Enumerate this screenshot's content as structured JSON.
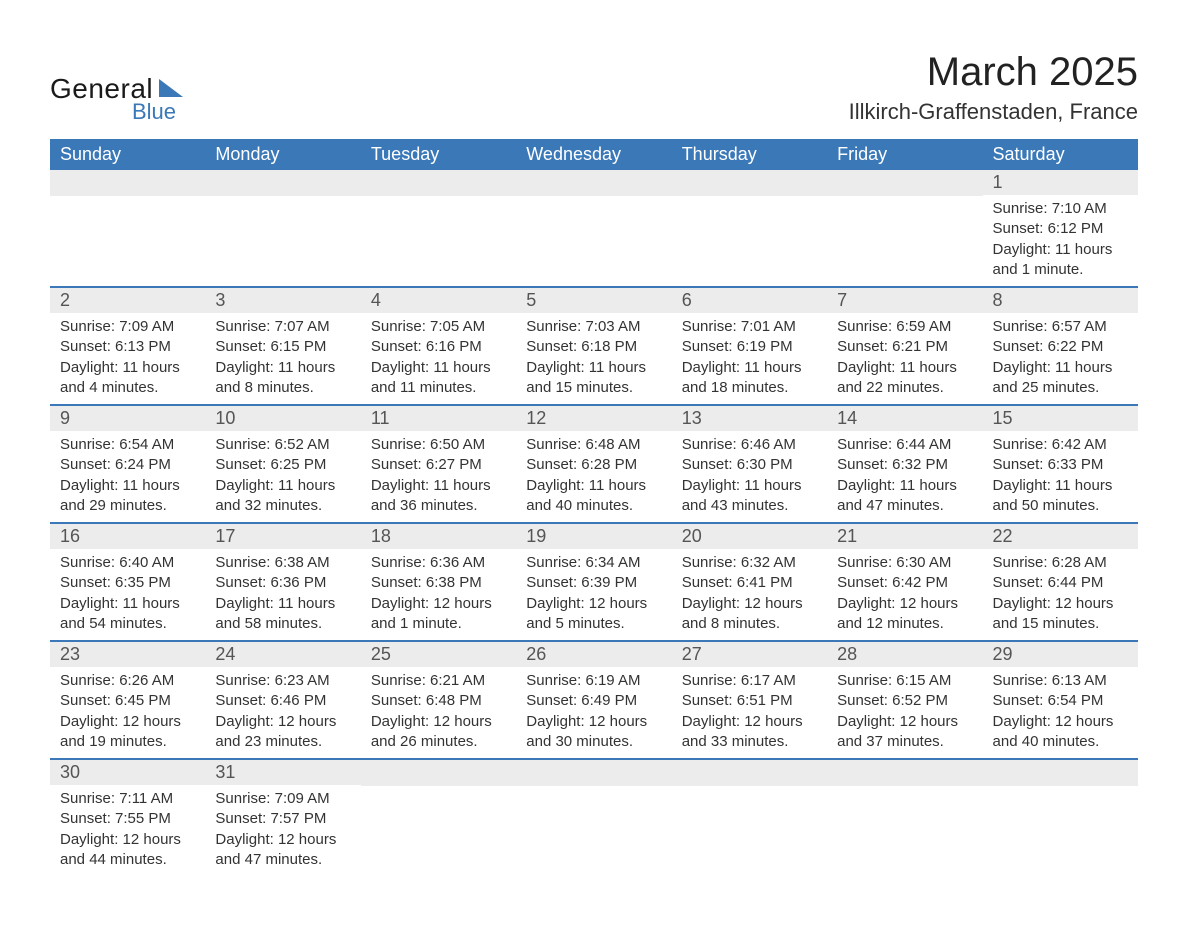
{
  "logo": {
    "text_general": "General",
    "text_blue": "Blue"
  },
  "header": {
    "month_year": "March 2025",
    "location": "Illkirch-Graffenstaden, France"
  },
  "colors": {
    "header_bg": "#3a78b8",
    "header_text": "#ffffff",
    "daynum_bg": "#ececec",
    "row_border": "#3a78b8",
    "body_text": "#333333",
    "logo_accent": "#3a78b8"
  },
  "calendar": {
    "type": "calendar-table",
    "day_names": [
      "Sunday",
      "Monday",
      "Tuesday",
      "Wednesday",
      "Thursday",
      "Friday",
      "Saturday"
    ],
    "weeks": [
      [
        null,
        null,
        null,
        null,
        null,
        null,
        {
          "n": "1",
          "sunrise": "7:10 AM",
          "sunset": "6:12 PM",
          "daylight": "11 hours and 1 minute."
        }
      ],
      [
        {
          "n": "2",
          "sunrise": "7:09 AM",
          "sunset": "6:13 PM",
          "daylight": "11 hours and 4 minutes."
        },
        {
          "n": "3",
          "sunrise": "7:07 AM",
          "sunset": "6:15 PM",
          "daylight": "11 hours and 8 minutes."
        },
        {
          "n": "4",
          "sunrise": "7:05 AM",
          "sunset": "6:16 PM",
          "daylight": "11 hours and 11 minutes."
        },
        {
          "n": "5",
          "sunrise": "7:03 AM",
          "sunset": "6:18 PM",
          "daylight": "11 hours and 15 minutes."
        },
        {
          "n": "6",
          "sunrise": "7:01 AM",
          "sunset": "6:19 PM",
          "daylight": "11 hours and 18 minutes."
        },
        {
          "n": "7",
          "sunrise": "6:59 AM",
          "sunset": "6:21 PM",
          "daylight": "11 hours and 22 minutes."
        },
        {
          "n": "8",
          "sunrise": "6:57 AM",
          "sunset": "6:22 PM",
          "daylight": "11 hours and 25 minutes."
        }
      ],
      [
        {
          "n": "9",
          "sunrise": "6:54 AM",
          "sunset": "6:24 PM",
          "daylight": "11 hours and 29 minutes."
        },
        {
          "n": "10",
          "sunrise": "6:52 AM",
          "sunset": "6:25 PM",
          "daylight": "11 hours and 32 minutes."
        },
        {
          "n": "11",
          "sunrise": "6:50 AM",
          "sunset": "6:27 PM",
          "daylight": "11 hours and 36 minutes."
        },
        {
          "n": "12",
          "sunrise": "6:48 AM",
          "sunset": "6:28 PM",
          "daylight": "11 hours and 40 minutes."
        },
        {
          "n": "13",
          "sunrise": "6:46 AM",
          "sunset": "6:30 PM",
          "daylight": "11 hours and 43 minutes."
        },
        {
          "n": "14",
          "sunrise": "6:44 AM",
          "sunset": "6:32 PM",
          "daylight": "11 hours and 47 minutes."
        },
        {
          "n": "15",
          "sunrise": "6:42 AM",
          "sunset": "6:33 PM",
          "daylight": "11 hours and 50 minutes."
        }
      ],
      [
        {
          "n": "16",
          "sunrise": "6:40 AM",
          "sunset": "6:35 PM",
          "daylight": "11 hours and 54 minutes."
        },
        {
          "n": "17",
          "sunrise": "6:38 AM",
          "sunset": "6:36 PM",
          "daylight": "11 hours and 58 minutes."
        },
        {
          "n": "18",
          "sunrise": "6:36 AM",
          "sunset": "6:38 PM",
          "daylight": "12 hours and 1 minute."
        },
        {
          "n": "19",
          "sunrise": "6:34 AM",
          "sunset": "6:39 PM",
          "daylight": "12 hours and 5 minutes."
        },
        {
          "n": "20",
          "sunrise": "6:32 AM",
          "sunset": "6:41 PM",
          "daylight": "12 hours and 8 minutes."
        },
        {
          "n": "21",
          "sunrise": "6:30 AM",
          "sunset": "6:42 PM",
          "daylight": "12 hours and 12 minutes."
        },
        {
          "n": "22",
          "sunrise": "6:28 AM",
          "sunset": "6:44 PM",
          "daylight": "12 hours and 15 minutes."
        }
      ],
      [
        {
          "n": "23",
          "sunrise": "6:26 AM",
          "sunset": "6:45 PM",
          "daylight": "12 hours and 19 minutes."
        },
        {
          "n": "24",
          "sunrise": "6:23 AM",
          "sunset": "6:46 PM",
          "daylight": "12 hours and 23 minutes."
        },
        {
          "n": "25",
          "sunrise": "6:21 AM",
          "sunset": "6:48 PM",
          "daylight": "12 hours and 26 minutes."
        },
        {
          "n": "26",
          "sunrise": "6:19 AM",
          "sunset": "6:49 PM",
          "daylight": "12 hours and 30 minutes."
        },
        {
          "n": "27",
          "sunrise": "6:17 AM",
          "sunset": "6:51 PM",
          "daylight": "12 hours and 33 minutes."
        },
        {
          "n": "28",
          "sunrise": "6:15 AM",
          "sunset": "6:52 PM",
          "daylight": "12 hours and 37 minutes."
        },
        {
          "n": "29",
          "sunrise": "6:13 AM",
          "sunset": "6:54 PM",
          "daylight": "12 hours and 40 minutes."
        }
      ],
      [
        {
          "n": "30",
          "sunrise": "7:11 AM",
          "sunset": "7:55 PM",
          "daylight": "12 hours and 44 minutes."
        },
        {
          "n": "31",
          "sunrise": "7:09 AM",
          "sunset": "7:57 PM",
          "daylight": "12 hours and 47 minutes."
        },
        null,
        null,
        null,
        null,
        null
      ]
    ],
    "labels": {
      "sunrise_prefix": "Sunrise: ",
      "sunset_prefix": "Sunset: ",
      "daylight_prefix": "Daylight: "
    }
  }
}
